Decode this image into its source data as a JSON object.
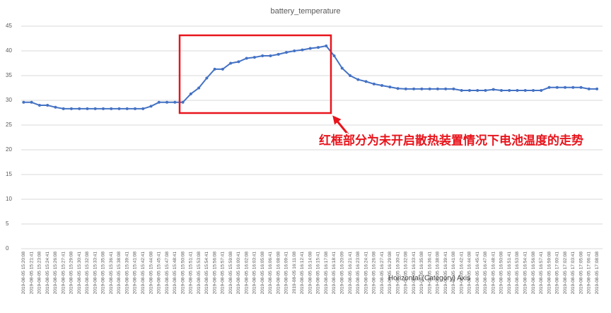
{
  "chart_data": {
    "type": "line",
    "title": "battery_temperature",
    "x_label": "Horizontal (Category) Axis",
    "annotation": "红框部分为未开启散热装置情况下电池温度的走势",
    "categories": [
      "2019-08-05 15:20:08",
      "2019-08-05 15:21:41",
      "2019-08-05 15:23:08",
      "2019-08-05 15:24:41",
      "2019-08-05 15:26:08",
      "2019-08-05 15:27:41",
      "2019-08-05 15:29:08",
      "2019-08-05 15:30:41",
      "2019-08-05 15:32:08",
      "2019-08-05 15:33:41",
      "2019-08-05 15:35:08",
      "2019-08-05 15:36:41",
      "2019-08-05 15:38:08",
      "2019-08-05 15:39:41",
      "2019-08-05 15:41:08",
      "2019-08-05 15:42:41",
      "2019-08-05 15:44:08",
      "2019-08-05 15:45:41",
      "2019-08-05 15:47:08",
      "2019-08-05 15:48:41",
      "2019-08-05 15:50:08",
      "2019-08-05 15:51:41",
      "2019-08-05 15:53:08",
      "2019-08-05 15:54:41",
      "2019-08-05 15:56:08",
      "2019-08-05 15:57:41",
      "2019-08-05 15:59:08",
      "2019-08-05 16:00:41",
      "2019-08-05 16:02:08",
      "2019-08-05 16:03:41",
      "2019-08-05 16:05:08",
      "2019-08-05 16:06:41",
      "2019-08-05 16:08:08",
      "2019-08-05 16:09:41",
      "2019-08-05 16:11:08",
      "2019-08-05 16:12:41",
      "2019-08-05 16:14:08",
      "2019-08-05 16:15:41",
      "2019-08-05 16:17:08",
      "2019-08-05 16:18:41",
      "2019-08-05 16:20:09",
      "2019-08-05 16:21:41",
      "2019-08-05 16:23:08",
      "2019-08-05 16:24:41",
      "2019-08-05 16:26:08",
      "2019-08-05 16:27:41",
      "2019-08-05 16:29:08",
      "2019-08-05 16:30:41",
      "2019-08-05 16:32:08",
      "2019-08-05 16:33:41",
      "2019-08-05 16:35:08",
      "2019-08-05 16:36:41",
      "2019-08-05 16:38:08",
      "2019-08-05 16:39:41",
      "2019-08-05 16:41:08",
      "2019-08-05 16:42:41",
      "2019-08-05 16:44:08",
      "2019-08-05 16:45:41",
      "2019-08-05 16:47:08",
      "2019-08-05 16:48:41",
      "2019-08-05 16:50:08",
      "2019-08-05 16:51:41",
      "2019-08-05 16:53:08",
      "2019-08-05 16:54:41",
      "2019-08-05 16:56:08",
      "2019-08-05 16:57:41",
      "2019-08-05 16:59:08",
      "2019-08-05 17:00:41",
      "2019-08-05 17:02:08",
      "2019-08-05 17:03:41",
      "2019-08-05 17:05:08",
      "2019-08-05 17:06:41",
      "2019-08-05 17:08:08"
    ],
    "series": [
      {
        "name": "battery_temperature",
        "color": "#4472c4",
        "values": [
          29.6,
          29.6,
          29,
          29,
          28.6,
          28.3,
          28.3,
          28.3,
          28.3,
          28.3,
          28.3,
          28.3,
          28.3,
          28.3,
          28.3,
          28.3,
          28.8,
          29.6,
          29.6,
          29.6,
          29.6,
          31.3,
          32.5,
          34.5,
          36.3,
          36.3,
          37.5,
          37.8,
          38.5,
          38.7,
          39,
          39,
          39.3,
          39.7,
          40,
          40.2,
          40.5,
          40.7,
          41,
          39,
          36.5,
          35,
          34.2,
          33.8,
          33.3,
          33,
          32.7,
          32.4,
          32.3,
          32.3,
          32.3,
          32.3,
          32.3,
          32.3,
          32.3,
          32,
          32,
          32,
          32,
          32.2,
          32,
          32,
          32,
          32,
          32,
          32,
          32.6,
          32.6,
          32.6,
          32.6,
          32.6,
          32.3,
          32.3
        ]
      }
    ],
    "ylim": [
      0,
      45
    ],
    "yticks": [
      0,
      5,
      10,
      15,
      20,
      25,
      30,
      35,
      40,
      45
    ],
    "grid": true
  }
}
